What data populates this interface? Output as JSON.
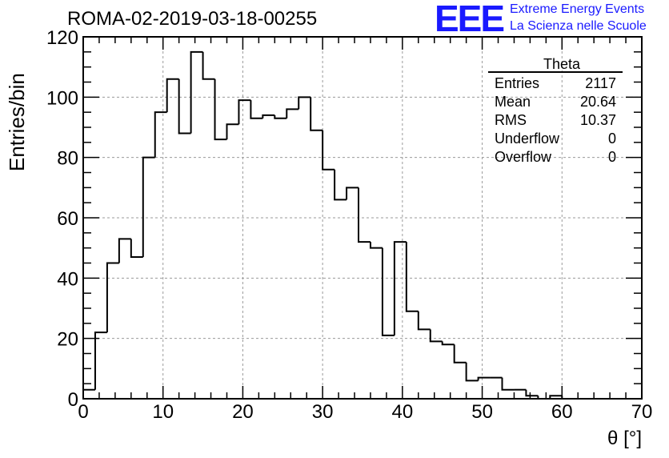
{
  "header": {
    "title": "ROMA-02-2019-03-18-00255",
    "logo_text": "EEE",
    "org_line1": "Extreme Energy Events",
    "org_line2": "La Scienza nelle Scuole"
  },
  "colors": {
    "brand": "#1a1aff",
    "line": "#000000",
    "grid": "#9a9a9a"
  },
  "chart_data": {
    "type": "histogram",
    "xlabel": "θ [°]",
    "ylabel": "Entries/bin",
    "xlim": [
      0,
      70
    ],
    "ylim": [
      0,
      120
    ],
    "grid": true,
    "bin_width": 1.5,
    "bin_edges_start": 0,
    "x_ticks": [
      0,
      10,
      20,
      30,
      40,
      50,
      60,
      70
    ],
    "y_ticks": [
      0,
      20,
      40,
      60,
      80,
      100,
      120
    ],
    "values": [
      3,
      22,
      45,
      53,
      47,
      80,
      95,
      106,
      88,
      115,
      106,
      86,
      91,
      99,
      93,
      94,
      93,
      96,
      100,
      89,
      76,
      66,
      70,
      52,
      50,
      21,
      52,
      29,
      23,
      19,
      18,
      12,
      6,
      7,
      7,
      3,
      3,
      1,
      0,
      1
    ],
    "stats_box": {
      "title": "Theta",
      "rows": [
        {
          "label": "Entries",
          "value": "2117"
        },
        {
          "label": "Mean",
          "value": "20.64"
        },
        {
          "label": "RMS",
          "value": "10.37"
        },
        {
          "label": "Underflow",
          "value": "0"
        },
        {
          "label": "Overflow",
          "value": "0"
        }
      ]
    }
  }
}
